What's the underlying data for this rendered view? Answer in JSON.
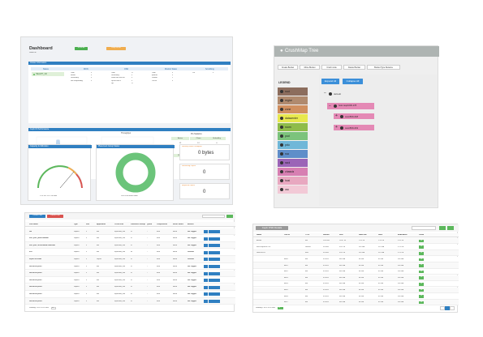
{
  "dashboard": {
    "title": "Dashboard",
    "subtitle": "cluster ok",
    "header_btn_green": "Scrub All",
    "header_btn_orange": "Deep Scrub",
    "cluster_info_title": "Cluster Information",
    "cols": [
      "Status",
      "MON",
      "OSD",
      "Monitor Status",
      "Scrubbing"
    ],
    "status_value": "HEALTH_OK",
    "mon_rows": [
      [
        "Total",
        "3"
      ],
      [
        "Health",
        "3"
      ],
      [
        "Unhealthy",
        "0"
      ],
      [
        "Not responding",
        "0"
      ]
    ],
    "osd_rows": [
      [
        "Total",
        "12"
      ],
      [
        "Unhealthy",
        "0"
      ],
      [
        "Down but not out",
        "0"
      ],
      [
        "Up but not in",
        "0"
      ],
      [
        "Up",
        "12"
      ]
    ],
    "monstatus_rows": [
      [
        "Total",
        "3"
      ],
      [
        "quorum",
        "3"
      ],
      [
        "Leader",
        "1"
      ],
      [
        "Out of",
        "0"
      ]
    ],
    "scrub_rows": [
      [
        "Off",
        "0"
      ]
    ],
    "io_title": "Ceph IO Performance",
    "io_legend": "Throughput",
    "pg_title": "PG Statistics",
    "pg_headers": [
      "Active",
      "Clean",
      "Unhealthy"
    ],
    "pg_values": [
      "12",
      "12",
      "0"
    ],
    "io_headers": [
      "Read",
      "Write",
      "Total"
    ],
    "io_values": [
      "0",
      "0",
      "0"
    ],
    "capacity_title": "Capacity & Utilization",
    "capacity_caption": "1.53 TiB / 10.1 TiB used",
    "placement_title": "Placement Group Status",
    "placement_caption": "1024 PGs active+clean",
    "stat1_label": "Recovery Read Throughput",
    "stat1_value": "0 bytes",
    "stat2_label": "Recovering Objects",
    "stat2_value": "0",
    "stat3_label": "Misplaced Objects",
    "stat3_value": "0"
  },
  "crush": {
    "title": "CrushMap Tree",
    "toolbar": [
      "Create Bucket",
      "Move Bucket",
      "Crush node",
      "Delete Bucket",
      "Bucket Type Rename"
    ],
    "legend_title": "LEGEND",
    "legend": [
      {
        "label": "root",
        "color": "#8c6d5d"
      },
      {
        "label": "region",
        "color": "#b08a6e"
      },
      {
        "label": "zone",
        "color": "#d08f5f"
      },
      {
        "label": "datacenter",
        "color": "#e8e84e"
      },
      {
        "label": "room",
        "color": "#8fbc4a"
      },
      {
        "label": "pod",
        "color": "#7cc37c"
      },
      {
        "label": "pdu",
        "color": "#6fb7d8"
      },
      {
        "label": "row",
        "color": "#5f8ec9"
      },
      {
        "label": "rack",
        "color": "#9b64b7"
      },
      {
        "label": "chassis",
        "color": "#d77fb2"
      },
      {
        "label": "host",
        "color": "#e8a8c0"
      },
      {
        "label": "osd",
        "color": "#f2c9d6"
      }
    ],
    "expand_label": "Expand All",
    "collapse_label": "Collapse All",
    "tree": [
      "default",
      "host cesp1000-178",
      "cesx500-218",
      "cesx500-219"
    ]
  },
  "rbd": {
    "btn_create": "Create Pool",
    "btn_delete": "Delete Pool",
    "headers": [
      "Pool Name",
      "Type",
      "Size",
      "Application",
      "Crush Rule",
      "Placement Groups",
      "Quota",
      "Compression",
      "Mirror Status",
      "Actions"
    ],
    "rows": [
      [
        "rbd",
        "Replica",
        "3",
        "rbd",
        "replicated_rule",
        "32",
        "-",
        "none",
        "Mirror",
        "Not Tagged"
      ],
      [
        "new_pool_pdd300b84481",
        "Replica",
        "3",
        "rbd",
        "replicated_rule",
        "32",
        "-",
        "none",
        "Mirror",
        "Not Tagged"
      ],
      [
        "new_pool_bd1d3b8b4b7a8d6e6a5",
        "Replica",
        "3",
        "rbd",
        "replicated_rule",
        "32",
        "-",
        "none",
        "Mirror",
        "Not Tagged"
      ],
      [
        "test",
        "Replica",
        "3",
        "rbd",
        "replicated_rule",
        "64",
        "-",
        "none",
        "Mirror",
        "Disabled"
      ],
      [
        "cephfs.test.data",
        "Replica",
        "3",
        "cephfs",
        "replicated_rule",
        "32",
        "-",
        "none",
        "Mirror",
        "Disabled"
      ],
      [
        "rbd-mirror-pool-1",
        "Replica",
        "3",
        "rbd",
        "replicated_rule",
        "32",
        "-",
        "none",
        "Mirror",
        "Not Tagged"
      ],
      [
        "rbd-mirror-pool-2",
        "Replica",
        "3",
        "rbd",
        "replicated_rule",
        "32",
        "-",
        "none",
        "Mirror",
        "Not Tagged"
      ],
      [
        "rbd-mirror-pool-3",
        "Replica",
        "3",
        "rbd",
        "replicated_rule",
        "32",
        "-",
        "none",
        "Mirror",
        "Not Tagged"
      ],
      [
        "rbd-mirror-pool-4",
        "Replica",
        "3",
        "rbd",
        "replicated_rule",
        "32",
        "-",
        "none",
        "Mirror",
        "Not Tagged"
      ],
      [
        "rbd-mirror-pool-5",
        "Replica",
        "3",
        "rbd",
        "replicated_rule",
        "32",
        "-",
        "none",
        "Mirror",
        "Not Tagged"
      ],
      [
        "rbd-mirror-pool-6",
        "Replica",
        "3",
        "rbd",
        "replicated_rule",
        "32",
        "-",
        "none",
        "Mirror",
        "Not Tagged"
      ]
    ],
    "footer": "Showing 1 to 11 of 11 rows",
    "per_page": "10"
  },
  "osd": {
    "title": "Ceph OSD Details",
    "headers": [
      "NAME",
      "OSD ID",
      "TYPE",
      "WEIGHT",
      "SIZE",
      "RAW USE",
      "DATA",
      "AVAILABLE",
      "%USE"
    ],
    "rows": [
      [
        "default",
        "",
        "root",
        "10.87360",
        "10.87 TiB",
        "1.55 TiB",
        "1.53 TiB",
        "9.32 TiB",
        "14"
      ],
      [
        "host cesp1000-178",
        "",
        "chassis",
        "3.62450",
        "3.62 TiB",
        "530 GiB",
        "525 GiB",
        "3.11 TiB",
        "14"
      ],
      [
        "cesx500-218",
        "",
        "host",
        "3.62450",
        "3.62 TiB",
        "530 GiB",
        "525 GiB",
        "3.11 TiB",
        "14"
      ],
      [
        "",
        "osd.0",
        "osd",
        "0.45310",
        "464 GiB",
        "66 GiB",
        "65 GiB",
        "398 GiB",
        "14"
      ],
      [
        "",
        "osd.1",
        "osd",
        "0.45310",
        "464 GiB",
        "66 GiB",
        "65 GiB",
        "398 GiB",
        "14"
      ],
      [
        "",
        "osd.2",
        "osd",
        "0.45310",
        "464 GiB",
        "66 GiB",
        "65 GiB",
        "398 GiB",
        "14"
      ],
      [
        "",
        "osd.3",
        "osd",
        "0.45310",
        "464 GiB",
        "66 GiB",
        "65 GiB",
        "398 GiB",
        "14"
      ],
      [
        "",
        "osd.4",
        "osd",
        "0.45310",
        "464 GiB",
        "66 GiB",
        "65 GiB",
        "398 GiB",
        "14"
      ],
      [
        "",
        "osd.5",
        "osd",
        "0.45310",
        "464 GiB",
        "66 GiB",
        "65 GiB",
        "398 GiB",
        "14"
      ],
      [
        "",
        "osd.6",
        "osd",
        "0.45310",
        "464 GiB",
        "66 GiB",
        "65 GiB",
        "398 GiB",
        "14"
      ],
      [
        "",
        "osd.7",
        "osd",
        "0.45310",
        "464 GiB",
        "66 GiB",
        "65 GiB",
        "398 GiB",
        "14"
      ]
    ],
    "footer": "Showing 1 to 11 of 11 rows",
    "per_page": "10"
  }
}
